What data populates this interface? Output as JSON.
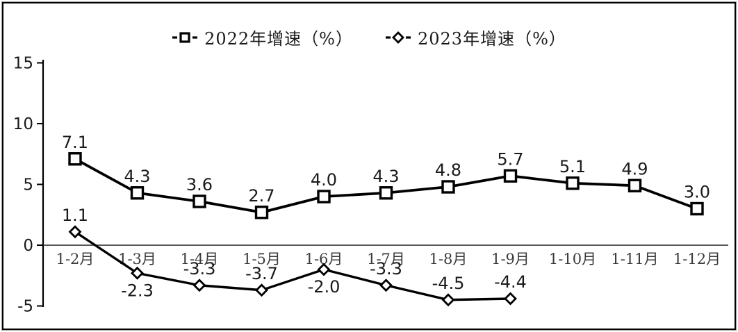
{
  "chart_data": {
    "type": "line",
    "title": "",
    "categories": [
      "1-2月",
      "1-3月",
      "1-4月",
      "1-5月",
      "1-6月",
      "1-7月",
      "1-8月",
      "1-9月",
      "1-10月",
      "1-11月",
      "1-12月"
    ],
    "series": [
      {
        "name": "2022年增速（%）",
        "marker": "square",
        "color": "#000000",
        "values": [
          7.1,
          4.3,
          3.6,
          2.7,
          4.0,
          4.3,
          4.8,
          5.7,
          5.1,
          4.9,
          3.0
        ],
        "label_side": [
          "above",
          "above",
          "above",
          "above",
          "above",
          "above",
          "above",
          "above",
          "above",
          "above",
          "above"
        ]
      },
      {
        "name": "2023年增速（%）",
        "marker": "diamond",
        "color": "#000000",
        "values": [
          1.1,
          -2.3,
          -3.3,
          -3.7,
          -2.0,
          -3.3,
          -4.5,
          -4.4
        ],
        "label_side": [
          "above",
          "below",
          "above",
          "above",
          "below",
          "above",
          "above",
          "above"
        ]
      }
    ],
    "y_axis": {
      "ticks": [
        15,
        10,
        5,
        0,
        -5
      ],
      "min": -5,
      "max": 15
    },
    "legend_position": "top",
    "grid": "off",
    "zero_baseline": true
  },
  "colors": {
    "line": "#000000",
    "marker_fill": "#ffffff",
    "value_label": "#1a1a1a",
    "x_tick_label": "#3a3a3a",
    "y_tick_label": "#1a1a1a",
    "axis": "#000000",
    "zero_line": "#222222",
    "background": "#ffffff"
  }
}
